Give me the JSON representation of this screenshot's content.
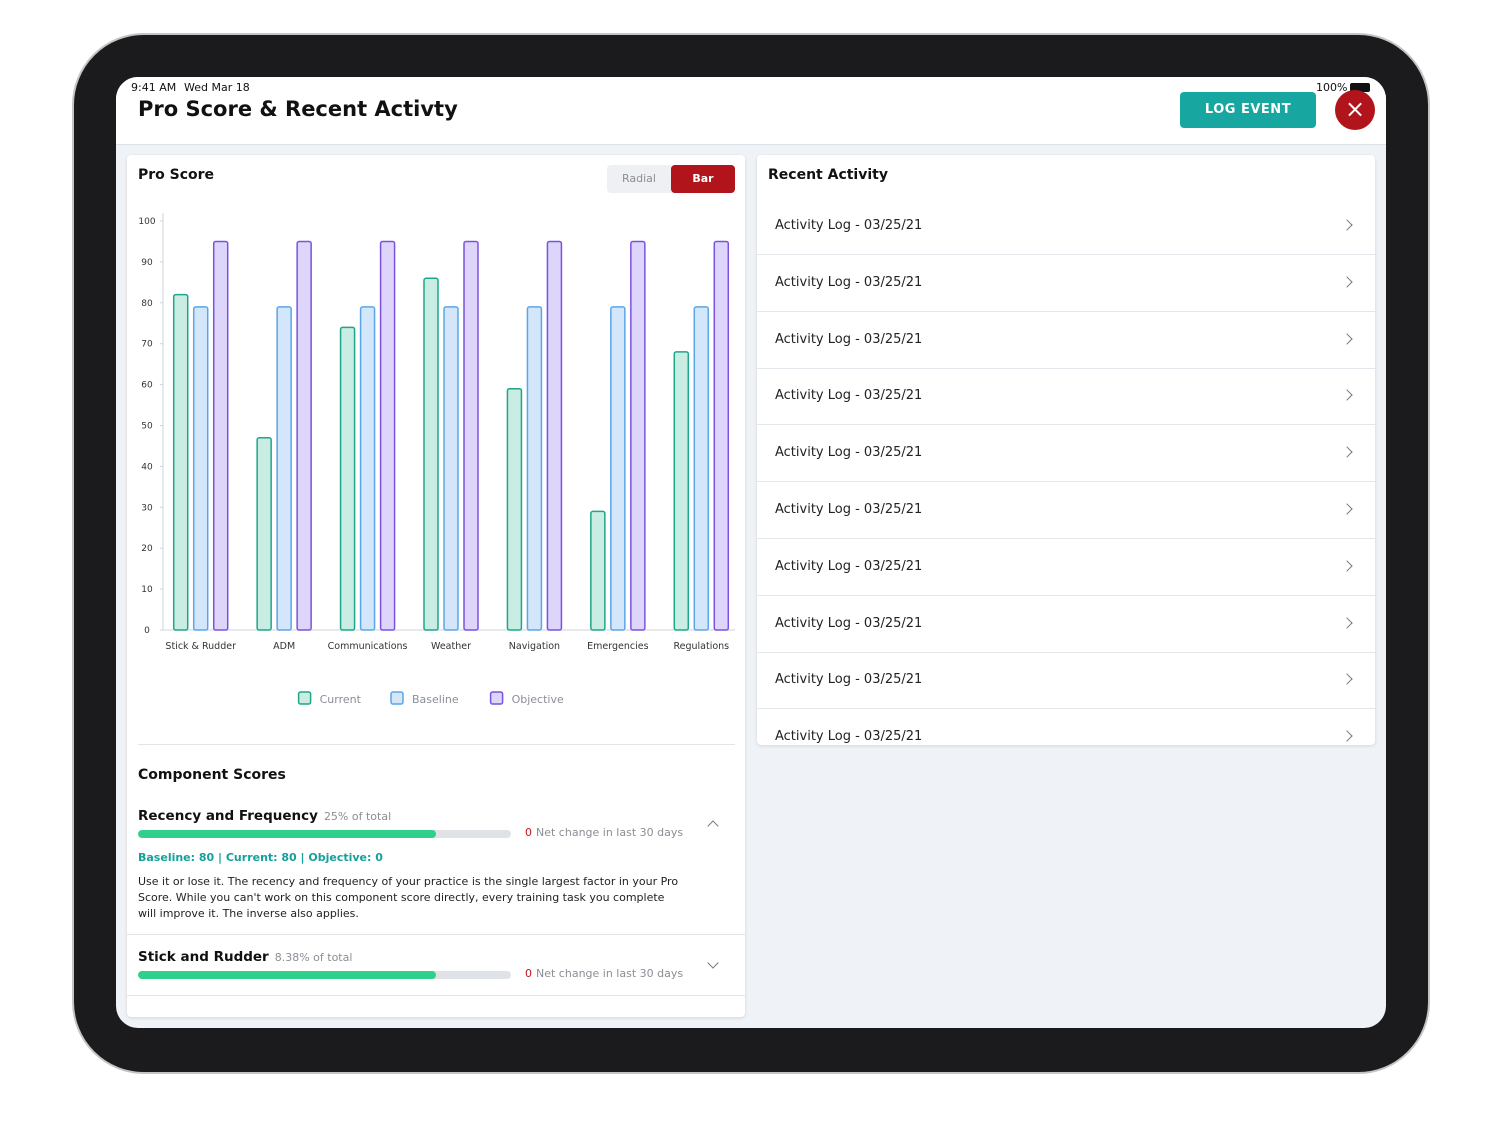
{
  "status": {
    "time": "9:41 AM",
    "date": "Wed Mar 18",
    "battery": "100%"
  },
  "header": {
    "title": "Pro Score & Recent Activty",
    "button": "LOG EVENT"
  },
  "chart_data": {
    "type": "bar",
    "title": "Pro Score",
    "toggle": [
      "Radial",
      "Bar"
    ],
    "categories": [
      "Stick & Rudder",
      "ADM",
      "Communications",
      "Weather",
      "Navigation",
      "Emergencies",
      "Regulations"
    ],
    "series": [
      {
        "name": "Current",
        "color": "#1ea58a",
        "fill": "#c9ede3",
        "values": [
          82,
          47,
          74,
          86,
          59,
          29,
          68
        ]
      },
      {
        "name": "Baseline",
        "color": "#5aa6e8",
        "fill": "#d3e6fa",
        "values": [
          79,
          79,
          79,
          79,
          79,
          79,
          79
        ]
      },
      {
        "name": "Objective",
        "color": "#7b52e0",
        "fill": "#ddd5fa",
        "values": [
          95,
          95,
          95,
          95,
          95,
          95,
          95
        ]
      }
    ],
    "ylim": [
      0,
      100
    ],
    "yticks": [
      0,
      10,
      20,
      30,
      40,
      50,
      60,
      70,
      80,
      90,
      100
    ],
    "legend": "bottom"
  },
  "recent_activity": {
    "title": "Recent Activity",
    "items": [
      "Activity Log - 03/25/21",
      "Activity Log - 03/25/21",
      "Activity Log - 03/25/21",
      "Activity Log - 03/25/21",
      "Activity Log - 03/25/21",
      "Activity Log - 03/25/21",
      "Activity Log - 03/25/21",
      "Activity Log - 03/25/21",
      "Activity Log - 03/25/21",
      "Activity Log - 03/25/21"
    ]
  },
  "components": {
    "title": "Component Scores",
    "items": [
      {
        "name": "Recency and Frequency",
        "share": "25% of total",
        "progress": 80,
        "net_change": 0,
        "net_label": "Net change in last 30 days",
        "stats": "Baseline: 80 | Current: 80 | Objective: 0",
        "description": "Use it or lose it. The recency and frequency of your practice is the single largest factor in your Pro Score. While you can't work on this component score directly, every training task you complete will improve it. The inverse also applies."
      },
      {
        "name": "Stick and Rudder",
        "share": "8.38% of total",
        "progress": 80,
        "net_change": 0,
        "net_label": "Net change in last 30 days"
      }
    ]
  }
}
